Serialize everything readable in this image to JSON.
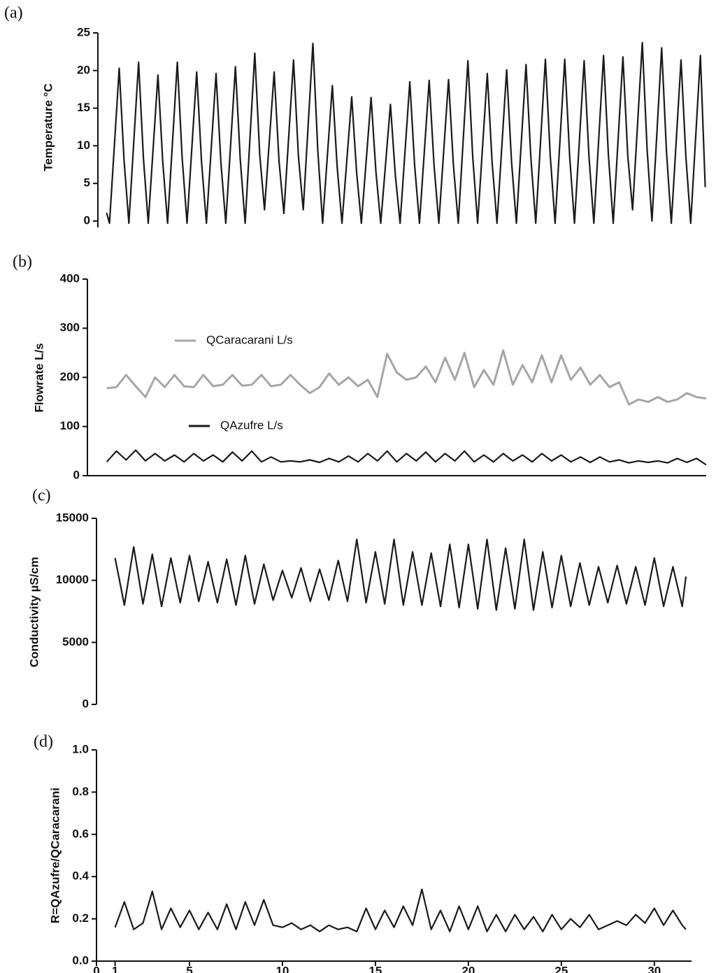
{
  "chart_data": [
    {
      "type": "line",
      "panel_label": "(a)",
      "ylabel": "Temperature °C",
      "xlim": [
        0,
        31.4
      ],
      "ylim": [
        0,
        25
      ],
      "yticks": [
        0,
        5,
        10,
        15,
        20,
        25
      ],
      "x": [
        0.45,
        0.6,
        1.1,
        1.35,
        1.6,
        2.1,
        2.35,
        2.6,
        3.1,
        3.35,
        3.6,
        4.1,
        4.35,
        4.6,
        5.1,
        5.35,
        5.6,
        6.1,
        6.35,
        6.6,
        7.1,
        7.35,
        7.6,
        8.1,
        8.35,
        8.6,
        9.1,
        9.35,
        9.6,
        10.1,
        10.35,
        10.6,
        11.1,
        11.35,
        11.6,
        12.1,
        12.35,
        12.6,
        13.1,
        13.35,
        13.6,
        14.1,
        14.35,
        14.6,
        15.1,
        15.35,
        15.6,
        16.1,
        16.35,
        16.6,
        17.1,
        17.35,
        17.6,
        18.1,
        18.35,
        18.6,
        19.1,
        19.35,
        19.6,
        20.1,
        20.35,
        20.6,
        21.1,
        21.35,
        21.6,
        22.1,
        22.35,
        22.6,
        23.1,
        23.35,
        23.6,
        24.1,
        24.35,
        24.6,
        25.1,
        25.35,
        25.6,
        26.1,
        26.35,
        26.6,
        27.1,
        27.35,
        27.6,
        28.1,
        28.35,
        28.6,
        29.1,
        29.35,
        29.6,
        30.1,
        30.35,
        30.6,
        31.1,
        31.35
      ],
      "series": [
        {
          "color": "#1a1a1a",
          "values": [
            1.1,
            -0.3,
            20.3,
            8.1,
            -0.3,
            21.1,
            8.4,
            -0.3,
            19.4,
            7.8,
            -0.3,
            21.1,
            8.4,
            -0.3,
            19.8,
            7.9,
            -0.3,
            19.6,
            7.8,
            -0.3,
            20.5,
            8.2,
            -0.3,
            22.3,
            8.9,
            1.5,
            19.8,
            7.9,
            1.0,
            21.4,
            8.6,
            1.5,
            23.6,
            9.4,
            -0.3,
            18.0,
            7.2,
            -0.3,
            16.5,
            6.6,
            -0.3,
            16.4,
            6.6,
            -0.3,
            15.5,
            6.2,
            -0.3,
            18.5,
            7.4,
            -0.3,
            18.7,
            7.5,
            -0.3,
            18.8,
            7.5,
            -0.3,
            21.3,
            8.5,
            -0.3,
            19.6,
            7.8,
            -0.3,
            20.1,
            8.0,
            -0.3,
            20.8,
            8.3,
            -0.3,
            21.5,
            8.6,
            -0.3,
            21.5,
            8.6,
            -0.3,
            21.3,
            8.5,
            -0.3,
            22.0,
            8.8,
            -0.3,
            21.8,
            8.7,
            1.5,
            23.7,
            9.5,
            0.0,
            23.0,
            9.2,
            -0.3,
            21.4,
            8.6,
            -0.3,
            22.0,
            4.5
          ]
        }
      ]
    },
    {
      "type": "line",
      "panel_label": "(b)",
      "ylabel": "Flowrate L/s",
      "baseline": true,
      "xlim": [
        0,
        32
      ],
      "ylim": [
        0,
        400
      ],
      "yticks": [
        0,
        100,
        200,
        300,
        400
      ],
      "x": [
        1,
        1.5,
        2,
        2.5,
        3,
        3.5,
        4,
        4.5,
        5,
        5.5,
        6,
        6.5,
        7,
        7.5,
        8,
        8.5,
        9,
        9.5,
        10,
        10.5,
        11,
        11.5,
        12,
        12.5,
        13,
        13.5,
        14,
        14.5,
        15,
        15.5,
        16,
        16.5,
        17,
        17.5,
        18,
        18.5,
        19,
        19.5,
        20,
        20.5,
        21,
        21.5,
        22,
        22.5,
        23,
        23.5,
        24,
        24.5,
        25,
        25.5,
        26,
        26.5,
        27,
        27.5,
        28,
        28.5,
        29,
        29.5,
        30,
        30.5,
        31,
        31.5,
        32
      ],
      "series": [
        {
          "name": "QCaracarani L/s",
          "color": "#a6a6a6",
          "values": [
            178,
            180,
            205,
            182,
            160,
            200,
            180,
            205,
            182,
            180,
            205,
            182,
            185,
            205,
            183,
            185,
            205,
            182,
            185,
            205,
            185,
            168,
            180,
            208,
            185,
            200,
            182,
            195,
            160,
            248,
            210,
            195,
            200,
            222,
            190,
            240,
            195,
            250,
            180,
            215,
            185,
            255,
            185,
            225,
            190,
            245,
            190,
            245,
            195,
            220,
            185,
            205,
            180,
            190,
            145,
            155,
            150,
            160,
            150,
            155,
            168,
            160,
            157
          ]
        },
        {
          "name": "QAzufre L/s",
          "color": "#1a1a1a",
          "values": [
            28,
            50,
            32,
            52,
            30,
            45,
            30,
            42,
            28,
            45,
            30,
            42,
            28,
            48,
            30,
            50,
            28,
            38,
            28,
            30,
            28,
            32,
            27,
            35,
            28,
            40,
            28,
            45,
            30,
            50,
            28,
            45,
            30,
            48,
            28,
            45,
            30,
            50,
            28,
            42,
            28,
            45,
            30,
            42,
            28,
            45,
            30,
            42,
            28,
            38,
            27,
            38,
            28,
            32,
            26,
            30,
            27,
            30,
            26,
            35,
            27,
            35,
            22
          ]
        }
      ]
    },
    {
      "type": "line",
      "panel_label": "(c)",
      "ylabel": "Conductivity µS/cm",
      "xlim": [
        0,
        32
      ],
      "ylim": [
        0,
        15000
      ],
      "yticks": [
        0,
        5000,
        10000,
        15000
      ],
      "x": [
        1,
        1.5,
        2,
        2.5,
        3,
        3.5,
        4,
        4.5,
        5,
        5.5,
        6,
        6.5,
        7,
        7.5,
        8,
        8.5,
        9,
        9.5,
        10,
        10.5,
        11,
        11.5,
        12,
        12.5,
        13,
        13.5,
        14,
        14.5,
        15,
        15.5,
        16,
        16.5,
        17,
        17.5,
        18,
        18.5,
        19,
        19.5,
        20,
        20.5,
        21,
        21.5,
        22,
        22.5,
        23,
        23.5,
        24,
        24.5,
        25,
        25.5,
        26,
        26.5,
        27,
        27.5,
        28,
        28.5,
        29,
        29.5,
        30,
        30.5,
        31,
        31.5,
        31.7
      ],
      "series": [
        {
          "color": "#1a1a1a",
          "values": [
            11800,
            8000,
            12700,
            8100,
            12100,
            7900,
            11800,
            8200,
            12000,
            8300,
            11500,
            8200,
            11700,
            8000,
            12000,
            8100,
            11300,
            8400,
            10800,
            8600,
            11000,
            8300,
            10900,
            8400,
            11600,
            8300,
            13300,
            8200,
            12300,
            8100,
            13300,
            8000,
            12300,
            8000,
            12200,
            7900,
            12900,
            7800,
            12900,
            7700,
            13300,
            7600,
            12600,
            7700,
            13300,
            7600,
            12300,
            7800,
            12000,
            7900,
            11400,
            8000,
            11100,
            8200,
            11200,
            8100,
            11100,
            8000,
            11800,
            7900,
            11100,
            7900,
            10300
          ]
        }
      ]
    },
    {
      "type": "line",
      "panel_label": "(d)",
      "ylabel": "R=QAzufre/QCaracarani",
      "xlim": [
        0,
        32
      ],
      "xticks": [
        0,
        1,
        5,
        10,
        15,
        20,
        25,
        30
      ],
      "ylim": [
        0,
        1
      ],
      "yticks": [
        {
          "value": 0,
          "label": "0.0"
        },
        0.2,
        0.4,
        0.6,
        0.8,
        {
          "value": 1,
          "label": "1.0"
        }
      ],
      "x": [
        1,
        1.5,
        2,
        2.5,
        3,
        3.5,
        4,
        4.5,
        5,
        5.5,
        6,
        6.5,
        7,
        7.5,
        8,
        8.5,
        9,
        9.5,
        10,
        10.5,
        11,
        11.5,
        12,
        12.5,
        13,
        13.5,
        14,
        14.5,
        15,
        15.5,
        16,
        16.5,
        17,
        17.5,
        18,
        18.5,
        19,
        19.5,
        20,
        20.5,
        21,
        21.5,
        22,
        22.5,
        23,
        23.5,
        24,
        24.5,
        25,
        25.5,
        26,
        26.5,
        27,
        27.5,
        28,
        28.5,
        29,
        29.5,
        30,
        30.5,
        31,
        31.5,
        31.7
      ],
      "series": [
        {
          "color": "#1a1a1a",
          "values": [
            0.16,
            0.28,
            0.15,
            0.18,
            0.33,
            0.15,
            0.25,
            0.16,
            0.24,
            0.15,
            0.23,
            0.15,
            0.27,
            0.15,
            0.28,
            0.17,
            0.29,
            0.17,
            0.16,
            0.18,
            0.15,
            0.17,
            0.14,
            0.17,
            0.15,
            0.16,
            0.14,
            0.25,
            0.15,
            0.24,
            0.16,
            0.26,
            0.17,
            0.34,
            0.15,
            0.24,
            0.14,
            0.26,
            0.15,
            0.26,
            0.14,
            0.22,
            0.14,
            0.22,
            0.15,
            0.21,
            0.14,
            0.22,
            0.15,
            0.2,
            0.16,
            0.22,
            0.15,
            0.17,
            0.19,
            0.17,
            0.22,
            0.18,
            0.25,
            0.17,
            0.24,
            0.17,
            0.15
          ]
        }
      ]
    }
  ]
}
